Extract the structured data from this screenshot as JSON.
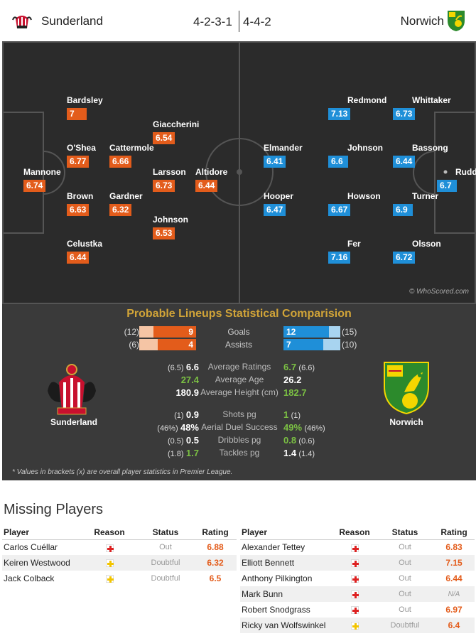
{
  "header": {
    "home_team": "Sunderland",
    "home_formation": "4-2-3-1",
    "away_formation": "4-4-2",
    "away_team": "Norwich"
  },
  "pitch": {
    "credit": "© WhoScored.com",
    "home_players": [
      {
        "name": "Mannone",
        "rating": "6.74"
      },
      {
        "name": "Bardsley",
        "rating": "7"
      },
      {
        "name": "O'Shea",
        "rating": "6.77"
      },
      {
        "name": "Brown",
        "rating": "6.63"
      },
      {
        "name": "Celustka",
        "rating": "6.44"
      },
      {
        "name": "Cattermole",
        "rating": "6.66"
      },
      {
        "name": "Gardner",
        "rating": "6.32"
      },
      {
        "name": "Giaccherini",
        "rating": "6.54"
      },
      {
        "name": "Larsson",
        "rating": "6.73"
      },
      {
        "name": "Johnson",
        "rating": "6.53"
      },
      {
        "name": "Altidore",
        "rating": "6.44"
      }
    ],
    "away_players": [
      {
        "name": "Elmander",
        "rating": "6.41"
      },
      {
        "name": "Hooper",
        "rating": "6.47"
      },
      {
        "name": "Redmond",
        "rating": "7.13"
      },
      {
        "name": "Johnson",
        "rating": "6.6"
      },
      {
        "name": "Howson",
        "rating": "6.67"
      },
      {
        "name": "Fer",
        "rating": "7.16"
      },
      {
        "name": "Whittaker",
        "rating": "6.73"
      },
      {
        "name": "Bassong",
        "rating": "6.44"
      },
      {
        "name": "Turner",
        "rating": "6.9"
      },
      {
        "name": "Olsson",
        "rating": "6.72"
      },
      {
        "name": "Rudd",
        "rating": "6.7"
      }
    ]
  },
  "comparison": {
    "title": "Probable Lineups Statistical Comparision",
    "home_name": "Sunderland",
    "away_name": "Norwich",
    "bars": [
      {
        "label": "Goals",
        "home_prev": "(12)",
        "home": "9",
        "home_share": 0.75,
        "away": "12",
        "away_prev": "(15)",
        "away_share": 0.8
      },
      {
        "label": "Assists",
        "home_prev": "(6)",
        "home": "4",
        "home_share": 0.67,
        "away": "7",
        "away_prev": "(10)",
        "away_share": 0.7
      }
    ],
    "rows": [
      {
        "label": "Average Ratings",
        "home_prev": "(6.5)",
        "home": "6.6",
        "home_win": false,
        "away": "6.7",
        "away_prev": "(6.6)",
        "away_win": true
      },
      {
        "label": "Average Age",
        "home_prev": "",
        "home": "27.4",
        "home_win": true,
        "away": "26.2",
        "away_prev": "",
        "away_win": false
      },
      {
        "label": "Average Height (cm)",
        "home_prev": "",
        "home": "180.9",
        "home_win": false,
        "away": "182.7",
        "away_prev": "",
        "away_win": true
      },
      {
        "label": "Shots pg",
        "home_prev": "(1)",
        "home": "0.9",
        "home_win": false,
        "away": "1",
        "away_prev": "(1)",
        "away_win": true
      },
      {
        "label": "Aerial Duel Success",
        "home_prev": "(46%)",
        "home": "48%",
        "home_win": false,
        "away": "49%",
        "away_prev": "(46%)",
        "away_win": true
      },
      {
        "label": "Dribbles pg",
        "home_prev": "(0.5)",
        "home": "0.5",
        "home_win": false,
        "away": "0.8",
        "away_prev": "(0.6)",
        "away_win": true
      },
      {
        "label": "Tackles pg",
        "home_prev": "(1.8)",
        "home": "1.7",
        "home_win": true,
        "away": "1.4",
        "away_prev": "(1.4)",
        "away_win": false
      }
    ],
    "footnote": "* Values in brackets (x) are overall player statistics in Premier League."
  },
  "missing": {
    "title": "Missing Players",
    "headers": {
      "player": "Player",
      "reason": "Reason",
      "status": "Status",
      "rating": "Rating"
    },
    "home": [
      {
        "player": "Carlos Cuéllar",
        "reason": "injury",
        "status": "Out",
        "rating": "6.88"
      },
      {
        "player": "Keiren Westwood",
        "reason": "doubt",
        "status": "Doubtful",
        "rating": "6.32"
      },
      {
        "player": "Jack Colback",
        "reason": "doubt",
        "status": "Doubtful",
        "rating": "6.5"
      }
    ],
    "away": [
      {
        "player": "Alexander Tettey",
        "reason": "injury",
        "status": "Out",
        "rating": "6.83"
      },
      {
        "player": "Elliott Bennett",
        "reason": "injury",
        "status": "Out",
        "rating": "7.15"
      },
      {
        "player": "Anthony Pilkington",
        "reason": "injury",
        "status": "Out",
        "rating": "6.44"
      },
      {
        "player": "Mark Bunn",
        "reason": "injury",
        "status": "Out",
        "rating": "N/A"
      },
      {
        "player": "Robert Snodgrass",
        "reason": "injury",
        "status": "Out",
        "rating": "6.97"
      },
      {
        "player": "Ricky van Wolfswinkel",
        "reason": "doubt",
        "status": "Doubtful",
        "rating": "6.4"
      }
    ]
  },
  "colors": {
    "home_accent": "#e35c1b",
    "away_accent": "#1f8fd8",
    "pitch": "#2b2b2b",
    "title_gold": "#d1a438",
    "better_stat": "#7bc043"
  }
}
